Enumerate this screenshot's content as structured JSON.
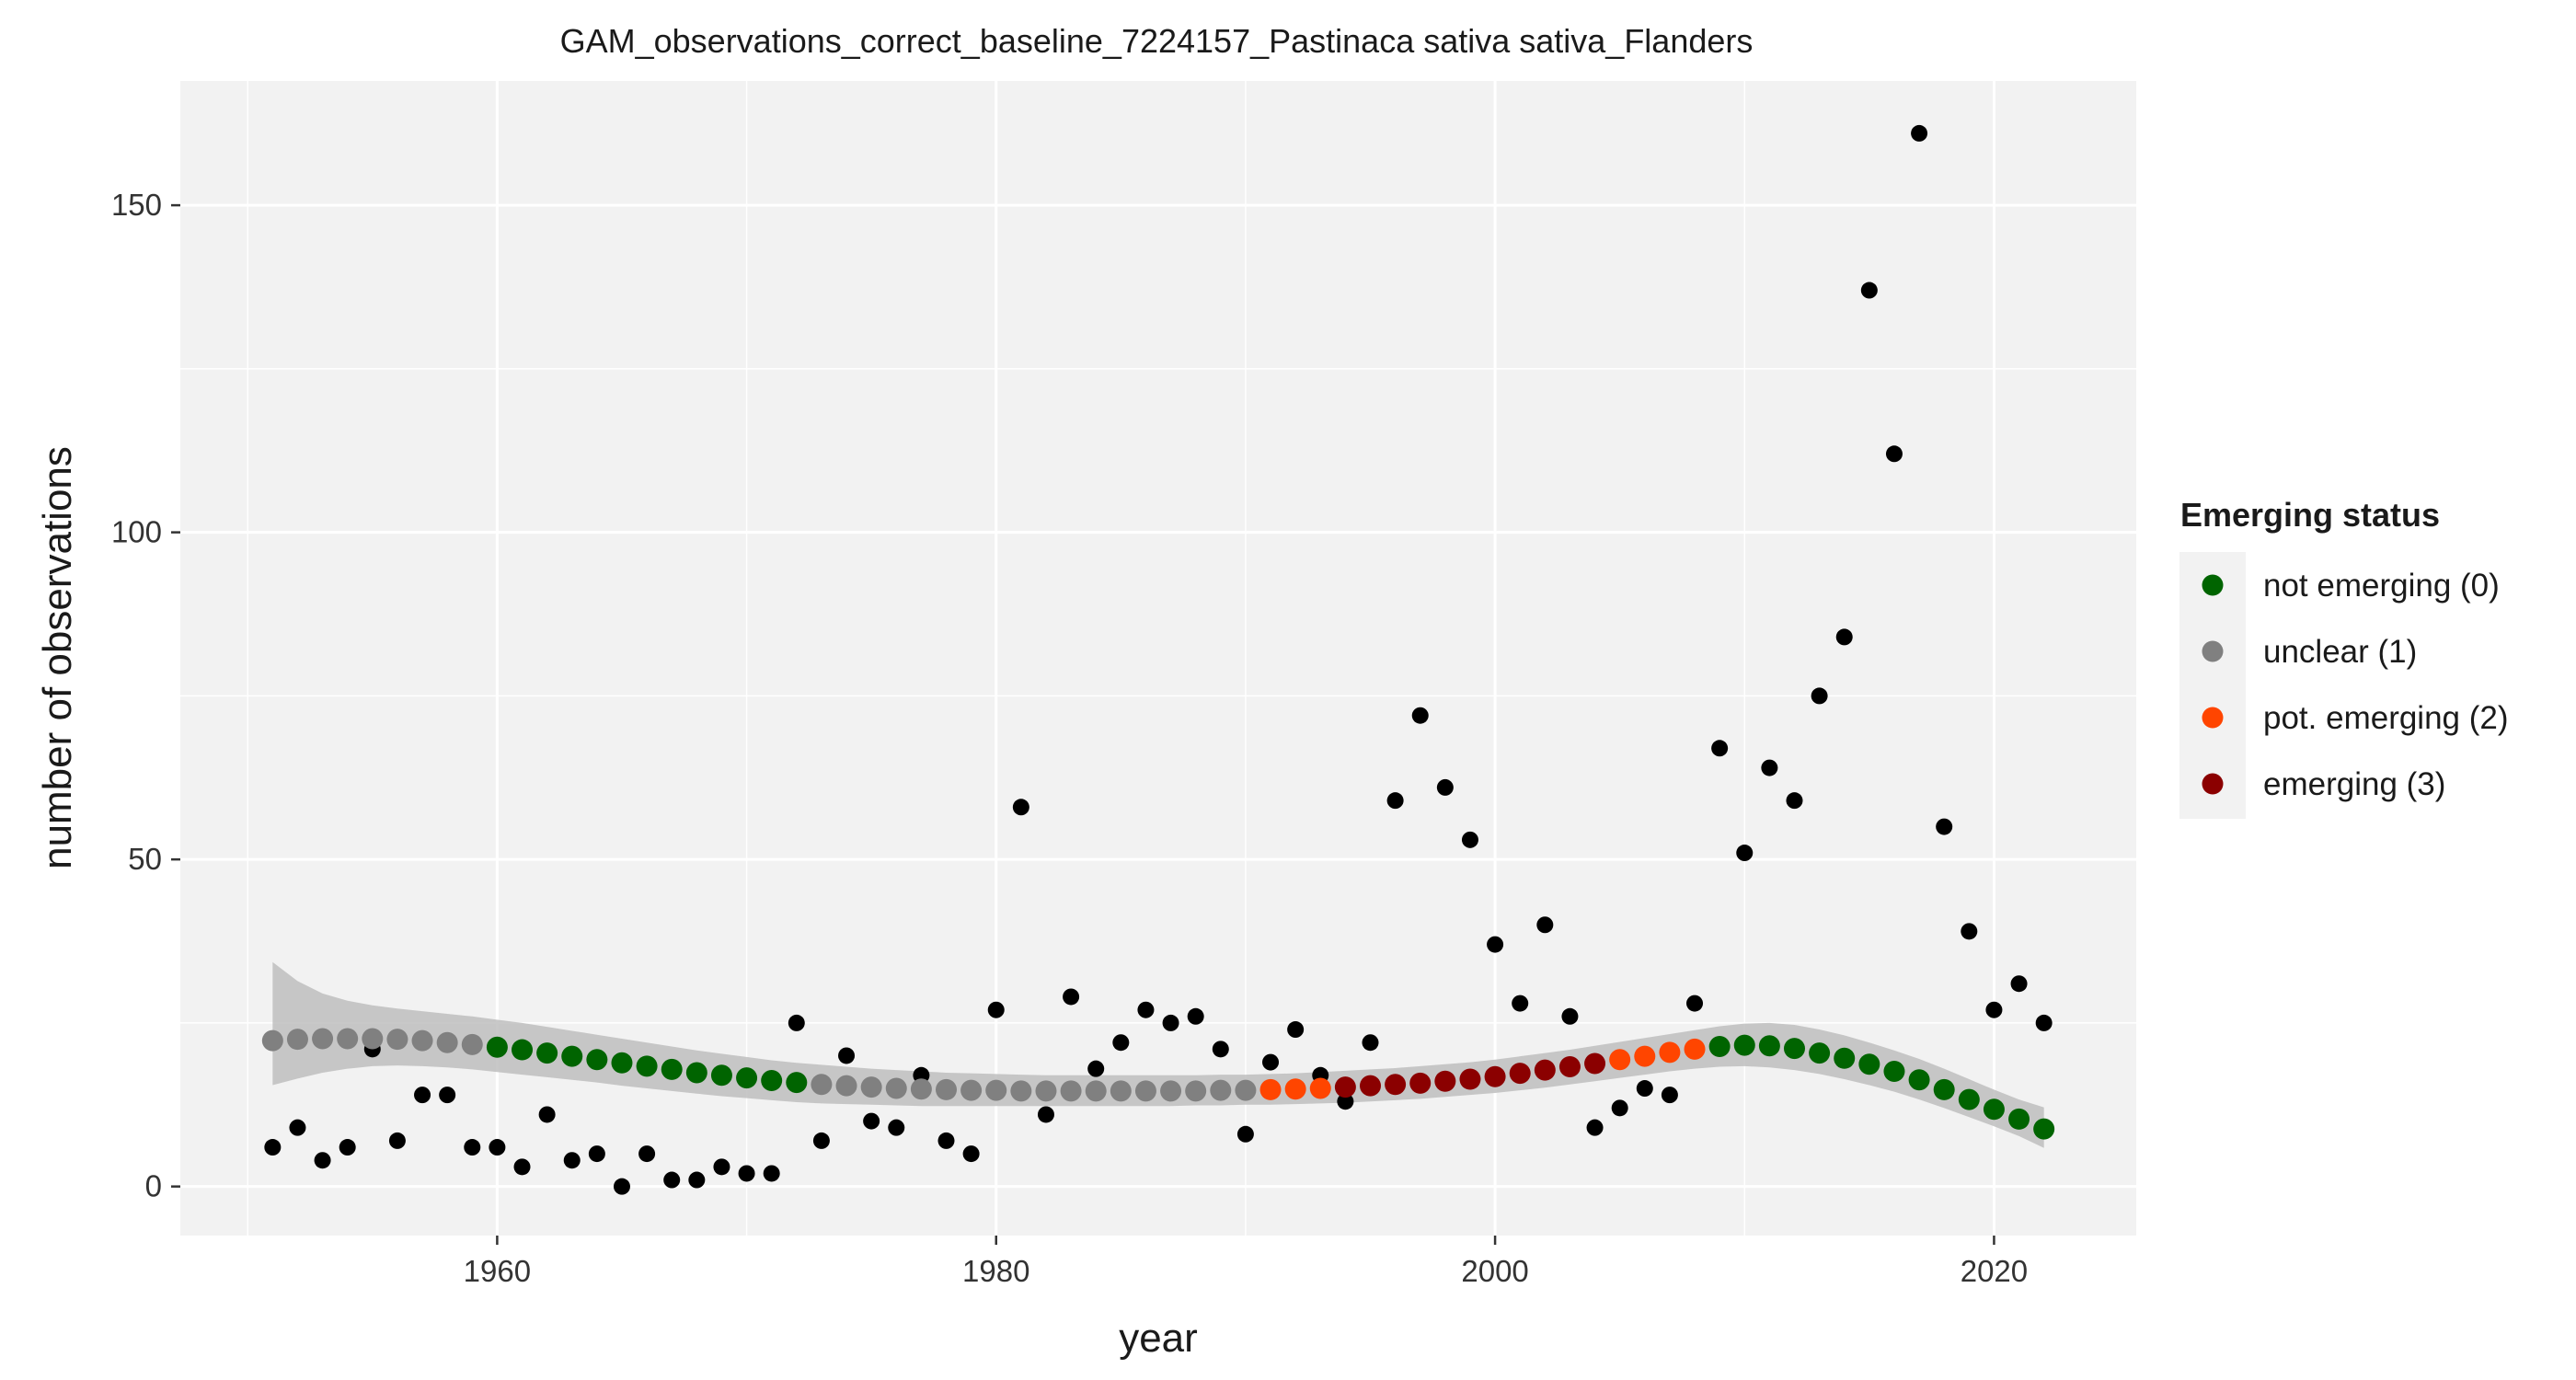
{
  "chart_data": {
    "type": "scatter",
    "title": "GAM_observations_correct_baseline_7224157_Pastinaca sativa sativa_Flanders",
    "xlabel": "year",
    "ylabel": "number of observations",
    "xlim": [
      1947.3,
      2025.7
    ],
    "ylim": [
      -7.5,
      169
    ],
    "x_ticks": [
      1960,
      1980,
      2000,
      2020
    ],
    "y_ticks": [
      0,
      50,
      100,
      150
    ],
    "grid": true,
    "legend_position": "right",
    "legend": {
      "title": "Emerging status",
      "entries": [
        {
          "label": "not emerging (0)",
          "color": "#006400"
        },
        {
          "label": "unclear (1)",
          "color": "#808080"
        },
        {
          "label": "pot. emerging (2)",
          "color": "#FF4500"
        },
        {
          "label": "emerging (3)",
          "color": "#8B0000"
        }
      ]
    },
    "colors": {
      "observations": "#000000",
      "ribbon": "#bebebe",
      "panel": "#f2f2f2",
      "grid": "#ffffff"
    },
    "series": [
      {
        "kind": "observations",
        "x": [
          1951,
          1952,
          1953,
          1954,
          1955,
          1956,
          1957,
          1958,
          1959,
          1960,
          1961,
          1962,
          1963,
          1964,
          1965,
          1966,
          1967,
          1968,
          1969,
          1970,
          1971,
          1972,
          1973,
          1974,
          1975,
          1976,
          1977,
          1978,
          1979,
          1980,
          1981,
          1982,
          1983,
          1984,
          1985,
          1986,
          1987,
          1988,
          1989,
          1990,
          1991,
          1992,
          1993,
          1994,
          1995,
          1996,
          1997,
          1998,
          1999,
          2000,
          2001,
          2002,
          2003,
          2004,
          2005,
          2006,
          2007,
          2008,
          2009,
          2010,
          2011,
          2012,
          2013,
          2014,
          2015,
          2016,
          2017,
          2018,
          2019,
          2020,
          2021,
          2022
        ],
        "y": [
          6,
          9,
          4,
          6,
          21,
          7,
          14,
          14,
          6,
          6,
          3,
          11,
          4,
          5,
          0,
          5,
          1,
          1,
          3,
          2,
          2,
          25,
          7,
          20,
          10,
          9,
          17,
          7,
          5,
          27,
          58,
          11,
          29,
          18,
          22,
          27,
          25,
          26,
          21,
          8,
          19,
          24,
          17,
          13,
          22,
          59,
          72,
          61,
          53,
          37,
          28,
          40,
          26,
          9,
          12,
          15,
          14,
          28,
          67,
          51,
          64,
          59,
          75,
          84,
          137,
          112,
          161,
          55,
          39,
          27,
          31,
          25
        ]
      },
      {
        "kind": "gam-fit",
        "x": [
          1951,
          1952,
          1953,
          1954,
          1955,
          1956,
          1957,
          1958,
          1959,
          1960,
          1961,
          1962,
          1963,
          1964,
          1965,
          1966,
          1967,
          1968,
          1969,
          1970,
          1971,
          1972,
          1973,
          1974,
          1975,
          1976,
          1977,
          1978,
          1979,
          1980,
          1981,
          1982,
          1983,
          1984,
          1985,
          1986,
          1987,
          1988,
          1989,
          1990,
          1991,
          1992,
          1993,
          1994,
          1995,
          1996,
          1997,
          1998,
          1999,
          2000,
          2001,
          2002,
          2003,
          2004,
          2005,
          2006,
          2007,
          2008,
          2009,
          2010,
          2011,
          2012,
          2013,
          2014,
          2015,
          2016,
          2017,
          2018,
          2019,
          2020,
          2021,
          2022
        ],
        "y": [
          22.3,
          22.5,
          22.6,
          22.6,
          22.6,
          22.5,
          22.3,
          22.0,
          21.7,
          21.3,
          20.9,
          20.4,
          19.9,
          19.4,
          18.9,
          18.4,
          17.9,
          17.4,
          17.0,
          16.6,
          16.2,
          15.9,
          15.6,
          15.4,
          15.2,
          15.0,
          14.9,
          14.8,
          14.7,
          14.7,
          14.6,
          14.6,
          14.6,
          14.6,
          14.6,
          14.6,
          14.6,
          14.6,
          14.7,
          14.7,
          14.8,
          14.9,
          15.0,
          15.2,
          15.4,
          15.6,
          15.8,
          16.1,
          16.4,
          16.8,
          17.3,
          17.8,
          18.3,
          18.8,
          19.4,
          19.9,
          20.5,
          21.0,
          21.4,
          21.6,
          21.5,
          21.1,
          20.4,
          19.6,
          18.7,
          17.6,
          16.3,
          14.8,
          13.3,
          11.8,
          10.3,
          8.8
        ],
        "lower": [
          15.5,
          16.5,
          17.4,
          18.0,
          18.4,
          18.5,
          18.4,
          18.2,
          17.9,
          17.5,
          17.1,
          16.7,
          16.3,
          15.9,
          15.4,
          15.0,
          14.6,
          14.2,
          13.8,
          13.5,
          13.2,
          12.9,
          12.7,
          12.6,
          12.5,
          12.4,
          12.3,
          12.3,
          12.3,
          12.3,
          12.3,
          12.3,
          12.3,
          12.3,
          12.3,
          12.3,
          12.3,
          12.4,
          12.4,
          12.5,
          12.5,
          12.6,
          12.7,
          12.8,
          13.0,
          13.2,
          13.4,
          13.7,
          14.0,
          14.3,
          14.7,
          15.1,
          15.6,
          16.1,
          16.6,
          17.1,
          17.6,
          18.0,
          18.3,
          18.4,
          18.2,
          17.8,
          17.2,
          16.4,
          15.5,
          14.5,
          13.3,
          12.0,
          10.6,
          9.2,
          7.7,
          5.9
        ],
        "upper": [
          34.3,
          31.4,
          29.5,
          28.4,
          27.7,
          27.2,
          26.8,
          26.4,
          26.0,
          25.5,
          25.0,
          24.4,
          23.8,
          23.2,
          22.6,
          22.0,
          21.4,
          20.8,
          20.3,
          19.8,
          19.3,
          18.9,
          18.6,
          18.3,
          18.0,
          17.8,
          17.6,
          17.4,
          17.3,
          17.2,
          17.1,
          17.0,
          17.0,
          17.0,
          17.0,
          17.0,
          17.0,
          17.0,
          17.1,
          17.1,
          17.2,
          17.3,
          17.5,
          17.7,
          17.9,
          18.1,
          18.4,
          18.7,
          19.0,
          19.4,
          19.9,
          20.4,
          20.9,
          21.5,
          22.1,
          22.7,
          23.3,
          23.9,
          24.5,
          24.9,
          25.0,
          24.7,
          24.0,
          23.1,
          22.0,
          20.8,
          19.5,
          18.0,
          16.4,
          14.8,
          13.3,
          12.1
        ],
        "status": [
          1,
          1,
          1,
          1,
          1,
          1,
          1,
          1,
          1,
          0,
          0,
          0,
          0,
          0,
          0,
          0,
          0,
          0,
          0,
          0,
          0,
          0,
          1,
          1,
          1,
          1,
          1,
          1,
          1,
          1,
          1,
          1,
          1,
          1,
          1,
          1,
          1,
          1,
          1,
          1,
          2,
          2,
          2,
          3,
          3,
          3,
          3,
          3,
          3,
          3,
          3,
          3,
          3,
          3,
          2,
          2,
          2,
          2,
          0,
          0,
          0,
          0,
          0,
          0,
          0,
          0,
          0,
          0,
          0,
          0,
          0,
          0
        ]
      }
    ]
  }
}
